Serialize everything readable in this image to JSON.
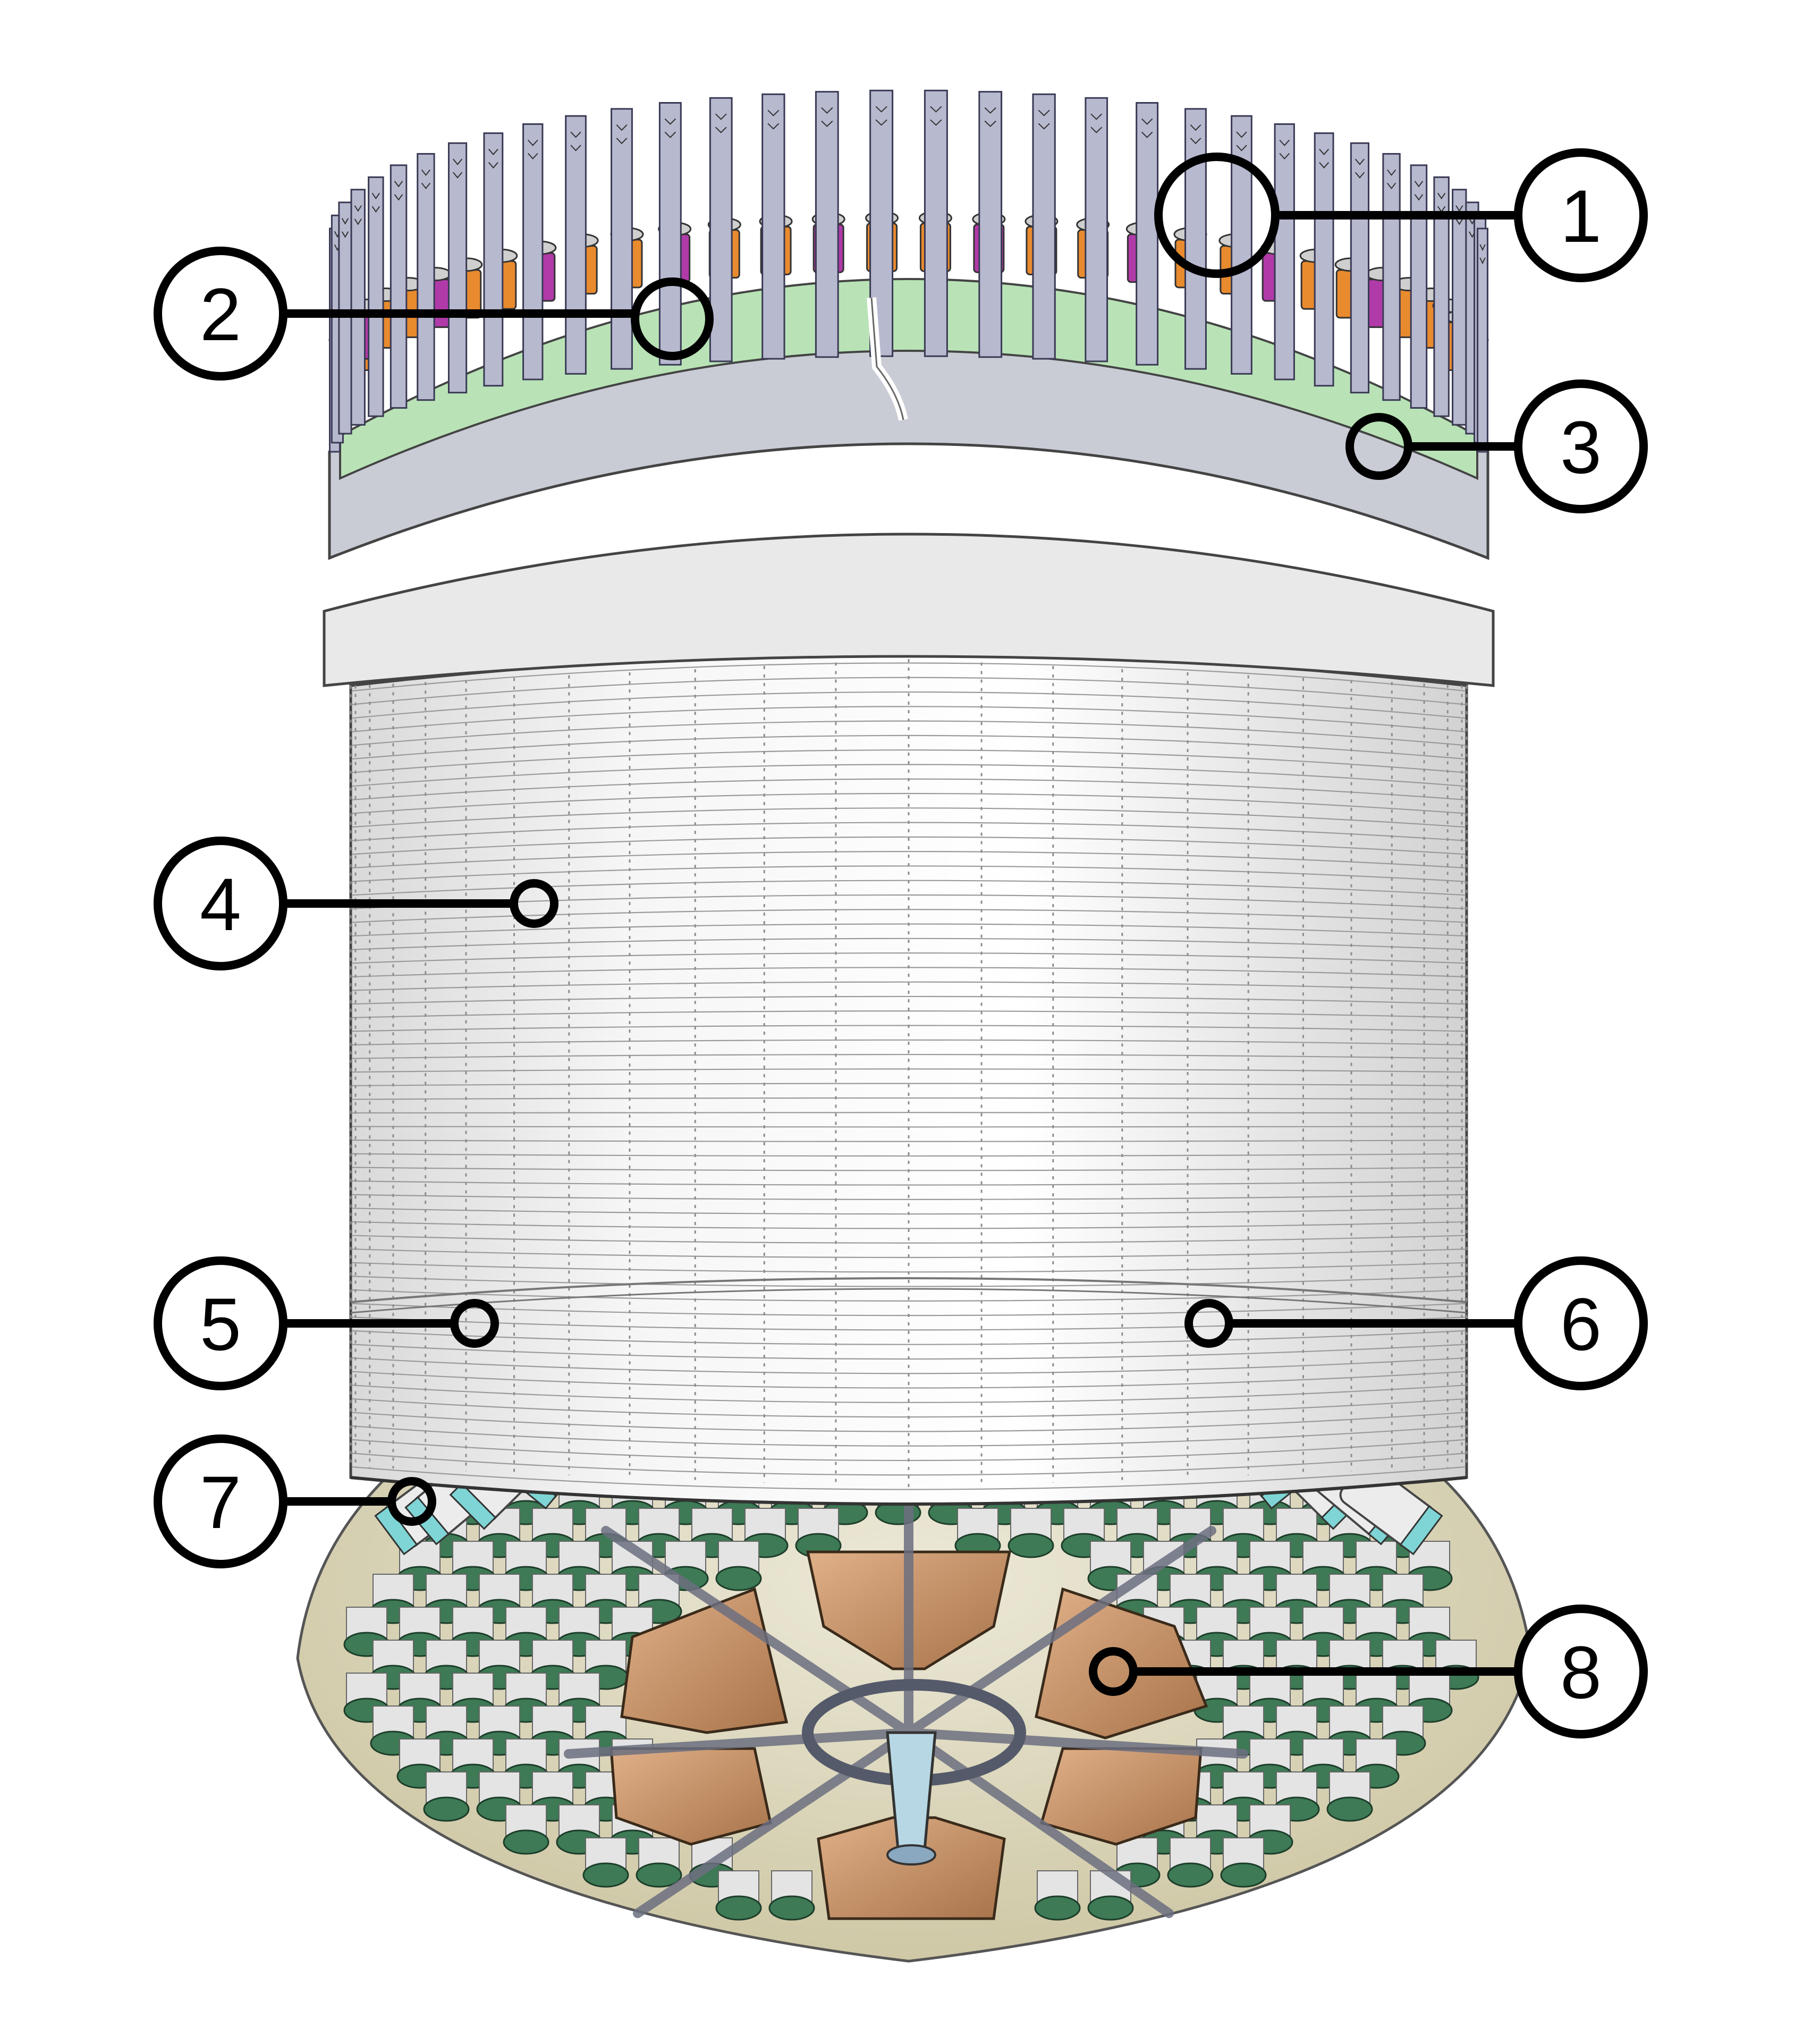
{
  "figure": {
    "callouts": [
      {
        "id": 1,
        "label": "1"
      },
      {
        "id": 2,
        "label": "2"
      },
      {
        "id": 3,
        "label": "3"
      },
      {
        "id": 4,
        "label": "4"
      },
      {
        "id": 5,
        "label": "5"
      },
      {
        "id": 6,
        "label": "6"
      },
      {
        "id": 7,
        "label": "7"
      },
      {
        "id": 8,
        "label": "8"
      }
    ],
    "colors": {
      "background": "#ffffff",
      "cylinder_body": "#f1f1f1",
      "cylinder_lines": "#9a9a9a",
      "top_strips": "#b7b9cf",
      "top_green": "#b9e3b6",
      "top_orange": "#e88a2e",
      "top_magenta": "#b03aa8",
      "bottom_plate": "#d8d3b6",
      "pmt_body": "#e4e4e4",
      "pmt_face": "#3d7a55",
      "pmt_ring": "#7fd5d5",
      "copper": "#c99667",
      "outline": "#000000"
    }
  }
}
